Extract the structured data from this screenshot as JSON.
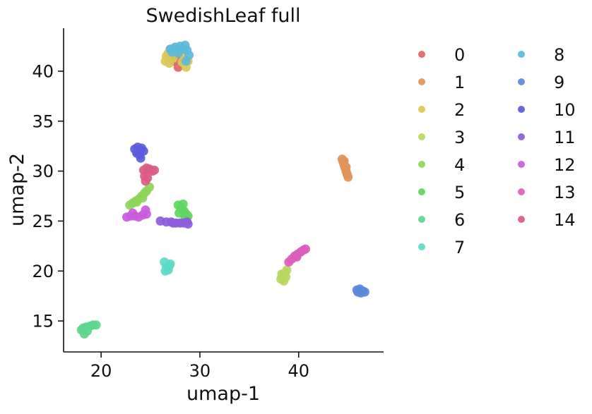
{
  "chart_data": {
    "type": "scatter",
    "title": "SwedishLeaf full",
    "xlabel": "umap-1",
    "ylabel": "umap-2",
    "xlim": [
      16.2,
      48.6
    ],
    "ylim": [
      11.9,
      44.3
    ],
    "xticks": [
      20,
      30,
      40
    ],
    "yticks": [
      15,
      20,
      25,
      30,
      35,
      40
    ],
    "grid": false,
    "legend_position": "outside-right",
    "legend_columns": 2,
    "series": [
      {
        "name": "0",
        "color": "#e06666",
        "points": [
          [
            27.2,
            41.5
          ],
          [
            27.6,
            41.9
          ],
          [
            28.0,
            41.2
          ],
          [
            27.8,
            40.4
          ],
          [
            27.4,
            41.0
          ]
        ]
      },
      {
        "name": "1",
        "color": "#df9459",
        "points": [
          [
            44.4,
            31.2
          ],
          [
            44.5,
            30.9
          ],
          [
            44.6,
            30.6
          ],
          [
            44.7,
            30.3
          ],
          [
            44.8,
            30.0
          ],
          [
            44.9,
            29.7
          ],
          [
            45.0,
            29.4
          ],
          [
            44.6,
            31.0
          ],
          [
            44.8,
            30.4
          ]
        ]
      },
      {
        "name": "2",
        "color": "#d9c857",
        "points": [
          [
            26.5,
            41.0
          ],
          [
            26.8,
            41.8
          ],
          [
            27.0,
            42.2
          ],
          [
            27.3,
            41.3
          ],
          [
            26.9,
            40.8
          ],
          [
            28.4,
            41.6
          ],
          [
            28.6,
            40.4
          ],
          [
            28.8,
            41.0
          ],
          [
            27.6,
            42.3
          ],
          [
            26.6,
            41.5
          ],
          [
            28.2,
            40.9
          ]
        ]
      },
      {
        "name": "3",
        "color": "#b7d85c",
        "points": [
          [
            38.2,
            19.2
          ],
          [
            38.4,
            19.5
          ],
          [
            38.6,
            19.8
          ],
          [
            38.8,
            20.1
          ],
          [
            38.5,
            19.0
          ],
          [
            38.3,
            19.7
          ],
          [
            38.7,
            19.4
          ]
        ]
      },
      {
        "name": "4",
        "color": "#8dd65a",
        "points": [
          [
            22.9,
            26.6
          ],
          [
            23.2,
            26.8
          ],
          [
            23.5,
            27.0
          ],
          [
            23.8,
            27.2
          ],
          [
            24.1,
            27.5
          ],
          [
            24.4,
            27.8
          ],
          [
            24.6,
            28.0
          ],
          [
            24.9,
            28.4
          ],
          [
            23.6,
            26.9
          ],
          [
            24.2,
            27.3
          ]
        ]
      },
      {
        "name": "5",
        "color": "#5fd65f",
        "points": [
          [
            27.8,
            26.6
          ],
          [
            28.1,
            26.3
          ],
          [
            28.4,
            26.0
          ],
          [
            28.6,
            25.7
          ],
          [
            28.8,
            25.5
          ],
          [
            27.9,
            25.8
          ],
          [
            28.3,
            26.7
          ],
          [
            28.5,
            25.4
          ]
        ]
      },
      {
        "name": "6",
        "color": "#5dd68f",
        "points": [
          [
            18.0,
            14.1
          ],
          [
            18.3,
            13.7
          ],
          [
            18.5,
            14.4
          ],
          [
            18.9,
            14.5
          ],
          [
            19.2,
            14.6
          ],
          [
            19.5,
            14.6
          ],
          [
            18.2,
            14.3
          ],
          [
            18.6,
            14.0
          ]
        ]
      },
      {
        "name": "7",
        "color": "#5cdbc8",
        "points": [
          [
            26.4,
            20.9
          ],
          [
            26.6,
            20.4
          ],
          [
            26.8,
            20.1
          ],
          [
            27.0,
            20.7
          ],
          [
            26.5,
            20.0
          ],
          [
            26.9,
            20.5
          ]
        ]
      },
      {
        "name": "8",
        "color": "#5bbad9",
        "points": [
          [
            27.0,
            42.2
          ],
          [
            27.5,
            42.4
          ],
          [
            28.0,
            42.5
          ],
          [
            28.5,
            42.6
          ],
          [
            28.7,
            42.1
          ],
          [
            28.9,
            41.6
          ],
          [
            28.6,
            41.0
          ],
          [
            27.8,
            41.8
          ],
          [
            27.2,
            41.9
          ],
          [
            28.3,
            42.2
          ]
        ]
      },
      {
        "name": "9",
        "color": "#5b88dc",
        "points": [
          [
            45.9,
            18.1
          ],
          [
            46.2,
            18.2
          ],
          [
            46.5,
            18.0
          ],
          [
            46.7,
            17.9
          ],
          [
            46.3,
            17.8
          ],
          [
            46.0,
            17.9
          ]
        ]
      },
      {
        "name": "10",
        "color": "#5c5cdb",
        "points": [
          [
            23.4,
            32.2
          ],
          [
            23.7,
            32.4
          ],
          [
            24.1,
            32.3
          ],
          [
            24.3,
            32.0
          ],
          [
            23.6,
            31.8
          ],
          [
            23.9,
            31.6
          ],
          [
            24.0,
            31.3
          ],
          [
            23.7,
            31.9
          ]
        ]
      },
      {
        "name": "11",
        "color": "#8e5cdb",
        "points": [
          [
            26.0,
            25.0
          ],
          [
            26.6,
            24.9
          ],
          [
            27.1,
            24.9
          ],
          [
            27.6,
            24.8
          ],
          [
            28.0,
            24.8
          ],
          [
            28.4,
            24.8
          ],
          [
            28.7,
            24.9
          ],
          [
            28.8,
            24.7
          ],
          [
            27.3,
            24.8
          ]
        ]
      },
      {
        "name": "12",
        "color": "#c85cdb",
        "points": [
          [
            22.6,
            25.4
          ],
          [
            23.0,
            25.5
          ],
          [
            23.4,
            25.5
          ],
          [
            23.8,
            25.4
          ],
          [
            24.2,
            25.6
          ],
          [
            24.5,
            26.1
          ],
          [
            24.6,
            25.7
          ],
          [
            23.2,
            25.8
          ]
        ]
      },
      {
        "name": "13",
        "color": "#db5cbb",
        "points": [
          [
            39.0,
            20.9
          ],
          [
            39.3,
            21.2
          ],
          [
            39.6,
            21.5
          ],
          [
            39.9,
            21.7
          ],
          [
            40.2,
            21.9
          ],
          [
            40.5,
            22.1
          ],
          [
            40.7,
            22.2
          ],
          [
            39.8,
            21.4
          ]
        ]
      },
      {
        "name": "14",
        "color": "#db5c85",
        "points": [
          [
            24.3,
            30.1
          ],
          [
            24.6,
            30.3
          ],
          [
            24.9,
            30.2
          ],
          [
            25.2,
            30.0
          ],
          [
            25.4,
            30.1
          ],
          [
            24.4,
            29.5
          ],
          [
            24.5,
            29.0
          ],
          [
            24.7,
            29.3
          ]
        ]
      }
    ]
  }
}
